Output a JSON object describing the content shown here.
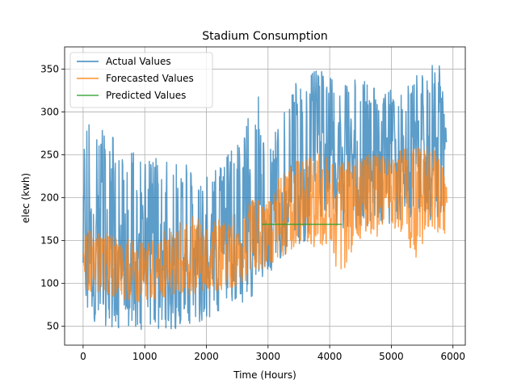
{
  "chart_data": {
    "type": "line",
    "title": "Stadium Consumption",
    "xlabel": "Time (Hours)",
    "ylabel": "elec (kwh)",
    "xlim": [
      -300,
      6200
    ],
    "ylim": [
      28,
      376
    ],
    "xticks": [
      0,
      1000,
      2000,
      3000,
      4000,
      5000,
      6000
    ],
    "yticks": [
      50,
      100,
      150,
      200,
      250,
      300,
      350
    ],
    "grid": true,
    "legend_position": "top-left",
    "colors": {
      "actual": "#1f77b4",
      "forecast": "#ff7f0e",
      "predicted": "#2ca02c"
    },
    "series": [
      {
        "name": "Actual Values",
        "kind": "envelope",
        "x": [
          0,
          200,
          400,
          600,
          800,
          1000,
          1200,
          1400,
          1600,
          1800,
          2000,
          2200,
          2400,
          2600,
          2800,
          3000,
          3200,
          3400,
          3600,
          3800,
          4000,
          4200,
          4400,
          4600,
          4800,
          5000,
          5200,
          5400,
          5600,
          5800,
          5900
        ],
        "low": [
          65,
          55,
          50,
          48,
          47,
          46,
          45,
          47,
          48,
          52,
          60,
          62,
          65,
          75,
          90,
          110,
          130,
          140,
          150,
          155,
          160,
          158,
          160,
          165,
          170,
          170,
          175,
          172,
          175,
          170,
          172
        ],
        "high": [
          305,
          300,
          285,
          265,
          255,
          245,
          248,
          240,
          248,
          240,
          228,
          245,
          255,
          270,
          335,
          265,
          290,
          335,
          340,
          350,
          345,
          342,
          338,
          335,
          330,
          325,
          330,
          345,
          358,
          362,
          270
        ],
        "mid": [
          150,
          140,
          135,
          130,
          128,
          125,
          120,
          118,
          120,
          122,
          125,
          128,
          135,
          140,
          150,
          160,
          175,
          200,
          220,
          235,
          240,
          245,
          245,
          245,
          248,
          245,
          240,
          238,
          240,
          240,
          225
        ]
      },
      {
        "name": "Forecasted Values",
        "kind": "envelope",
        "x": [
          0,
          200,
          400,
          600,
          800,
          1000,
          1200,
          1400,
          1600,
          1800,
          2000,
          2200,
          2400,
          2600,
          2800,
          3000,
          3200,
          3400,
          3600,
          3800,
          4000,
          4200,
          4400,
          4600,
          4800,
          5000,
          5200,
          5400,
          5600,
          5800,
          5900
        ],
        "low": [
          95,
          88,
          85,
          82,
          80,
          78,
          80,
          82,
          85,
          88,
          90,
          92,
          95,
          100,
          110,
          120,
          130,
          140,
          150,
          140,
          145,
          80,
          150,
          155,
          155,
          160,
          160,
          125,
          160,
          155,
          160
        ],
        "high": [
          165,
          160,
          158,
          155,
          150,
          148,
          160,
          165,
          175,
          185,
          170,
          175,
          180,
          190,
          200,
          195,
          230,
          240,
          250,
          255,
          245,
          240,
          245,
          255,
          250,
          245,
          260,
          260,
          262,
          250,
          210
        ],
        "mid": [
          125,
          118,
          115,
          112,
          110,
          108,
          110,
          115,
          118,
          120,
          122,
          125,
          130,
          135,
          145,
          155,
          165,
          180,
          190,
          195,
          195,
          192,
          198,
          200,
          205,
          205,
          210,
          208,
          215,
          212,
          190
        ]
      },
      {
        "name": "Predicted Values",
        "kind": "line",
        "x": [
          2900,
          4200
        ],
        "y": [
          169,
          169
        ]
      }
    ]
  }
}
